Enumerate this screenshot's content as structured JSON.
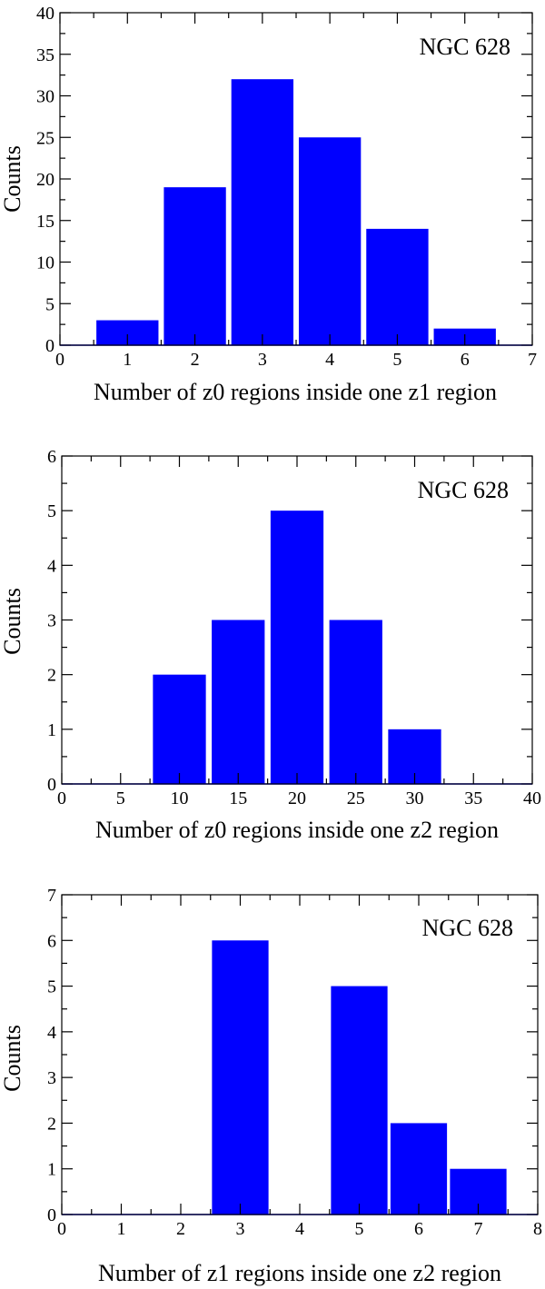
{
  "chart_data": [
    {
      "type": "bar",
      "x": [
        1,
        2,
        3,
        4,
        5,
        6
      ],
      "values": [
        3,
        19,
        32,
        25,
        14,
        2
      ],
      "bar_width": 0.92,
      "xlim": [
        0,
        7
      ],
      "ylim": [
        0,
        40
      ],
      "xticks": [
        0,
        1,
        2,
        3,
        4,
        5,
        6,
        7
      ],
      "yticks": [
        0,
        5,
        10,
        15,
        20,
        25,
        30,
        35,
        40
      ],
      "minor_x_step": 0.5,
      "minor_y_step": 2.5,
      "xlabel": "Number of z0 regions inside one z1 region",
      "ylabel": "Counts",
      "annotation": "NGC 628",
      "annotation_position": "top-right",
      "grid": false,
      "color": "#0000ff"
    },
    {
      "type": "bar",
      "x": [
        10,
        15,
        20,
        25,
        30
      ],
      "values": [
        2,
        3,
        5,
        3,
        1
      ],
      "bar_width": 4.5,
      "xlim": [
        0,
        40
      ],
      "ylim": [
        0,
        6
      ],
      "xticks": [
        0,
        5,
        10,
        15,
        20,
        25,
        30,
        35,
        40
      ],
      "yticks": [
        0,
        1,
        2,
        3,
        4,
        5,
        6
      ],
      "minor_x_step": 2.5,
      "minor_y_step": 0.5,
      "xlabel": "Number of z0 regions inside one z2 region",
      "ylabel": "Counts",
      "annotation": "NGC 628",
      "annotation_position": "top-right",
      "grid": false,
      "color": "#0000ff"
    },
    {
      "type": "bar",
      "x": [
        3,
        5,
        6,
        7
      ],
      "values": [
        6,
        5,
        2,
        1
      ],
      "bar_width": 0.95,
      "xlim": [
        0,
        8
      ],
      "ylim": [
        0,
        7
      ],
      "xticks": [
        0,
        1,
        2,
        3,
        4,
        5,
        6,
        7,
        8
      ],
      "yticks": [
        0,
        1,
        2,
        3,
        4,
        5,
        6,
        7
      ],
      "minor_x_step": 0.5,
      "minor_y_step": 0.5,
      "xlabel": "Number of z1 regions inside one z2 region",
      "ylabel": "Counts",
      "annotation": "NGC 628",
      "annotation_position": "top-right",
      "grid": false,
      "color": "#0000ff"
    }
  ]
}
